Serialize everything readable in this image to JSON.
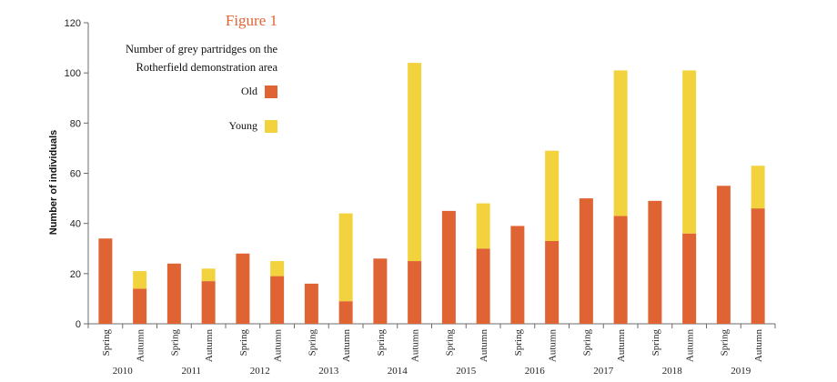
{
  "chart_data": {
    "type": "bar",
    "stacked": true,
    "title": "Figure 1",
    "subtitle_lines": [
      "Number of grey partridges on the",
      "Rotherfield demonstration area"
    ],
    "ylabel": "Number of individuals",
    "xlabel": "",
    "ylim": [
      0,
      120
    ],
    "yticks": [
      0,
      20,
      40,
      60,
      80,
      100,
      120
    ],
    "grid": false,
    "legend_position": "top-right",
    "categories": [
      "Spring",
      "Autumn",
      "Spring",
      "Autumn",
      "Spring",
      "Autumn",
      "Spring",
      "Autumn",
      "Spring",
      "Autumn",
      "Spring",
      "Autumn",
      "Spring",
      "Autumn",
      "Spring",
      "Autumn",
      "Spring",
      "Autumn",
      "Spring",
      "Autumn"
    ],
    "groups": [
      "2010",
      "2011",
      "2012",
      "2013",
      "2014",
      "2015",
      "2016",
      "2017",
      "2018",
      "2019"
    ],
    "series": [
      {
        "name": "Old",
        "color": "#e06433",
        "values": [
          34,
          14,
          24,
          17,
          28,
          19,
          16,
          9,
          26,
          25,
          45,
          30,
          39,
          33,
          50,
          43,
          49,
          36,
          55,
          46
        ]
      },
      {
        "name": "Young",
        "color": "#f2d33d",
        "values": [
          0,
          7,
          0,
          5,
          0,
          6,
          0,
          35,
          0,
          79,
          0,
          18,
          0,
          36,
          0,
          58,
          0,
          65,
          0,
          17
        ]
      }
    ],
    "colors": {
      "title": "#e06433",
      "axis": "#6b6b6b"
    }
  }
}
